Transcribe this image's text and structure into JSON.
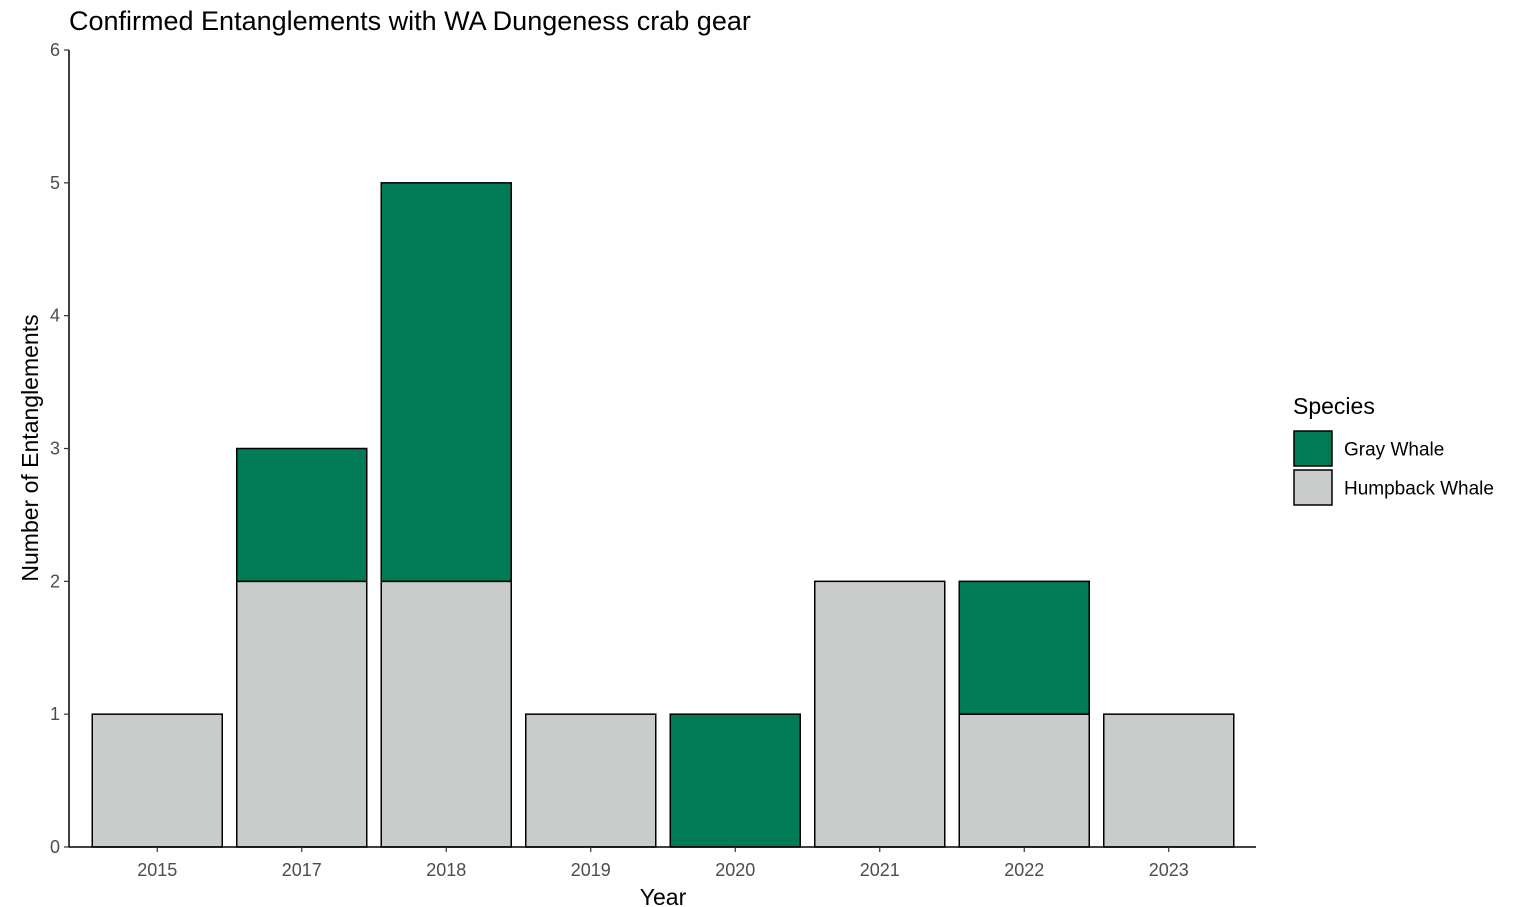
{
  "chart_data": {
    "type": "bar",
    "stacked": true,
    "title": "Confirmed Entanglements with WA Dungeness crab gear",
    "xlabel": "Year",
    "ylabel": "Number of Entanglements",
    "categories": [
      "2015",
      "2017",
      "2018",
      "2019",
      "2020",
      "2021",
      "2022",
      "2023"
    ],
    "series": [
      {
        "name": "Humpback Whale",
        "color": "#cacccb",
        "values": [
          1,
          2,
          2,
          1,
          0,
          2,
          1,
          1
        ]
      },
      {
        "name": "Gray Whale",
        "color": "#007b55",
        "values": [
          0,
          1,
          3,
          0,
          1,
          0,
          1,
          0
        ]
      }
    ],
    "ylim": [
      0,
      6
    ],
    "yticks": [
      0,
      1,
      2,
      3,
      4,
      5,
      6
    ],
    "grid": false,
    "legend": {
      "title": "Species",
      "position": "right",
      "entries": [
        {
          "label": "Gray Whale",
          "color": "#007b55"
        },
        {
          "label": "Humpback Whale",
          "color": "#cacccb"
        }
      ]
    }
  }
}
